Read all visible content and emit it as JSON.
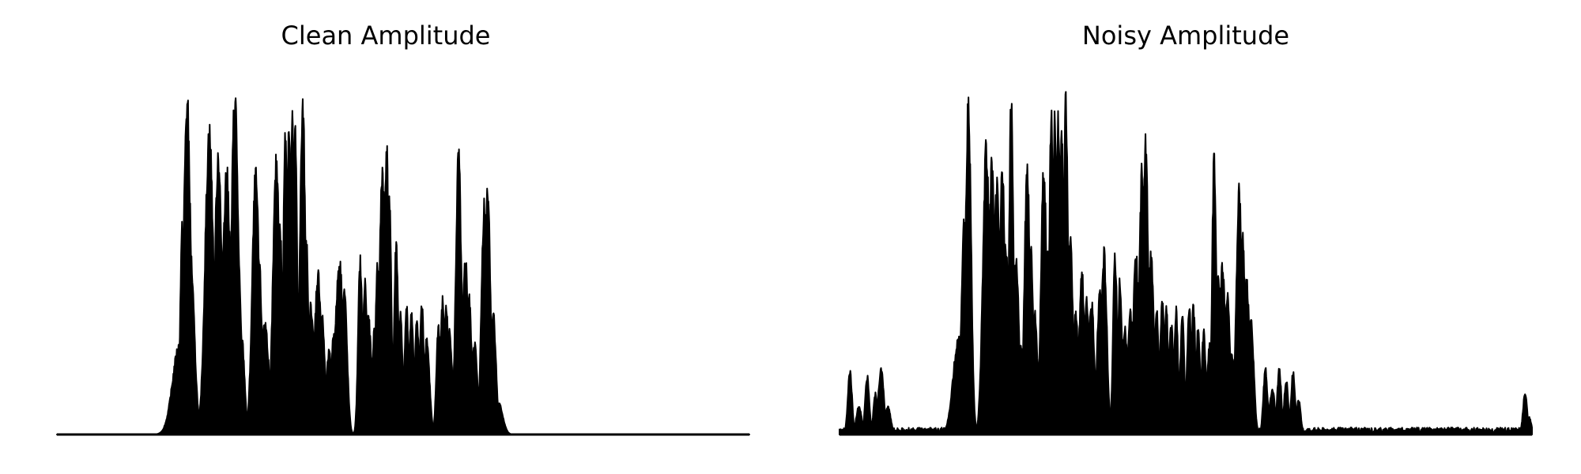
{
  "chart_data": [
    {
      "type": "area",
      "title": "Clean Amplitude",
      "xlabel": "",
      "ylabel": "",
      "axes": "off",
      "grid": false,
      "ylim": [
        0,
        1.0
      ],
      "color": "#000000",
      "peaks": [
        [
          0.177,
          0.01,
          0.26
        ],
        [
          0.181,
          0.003,
          0.6
        ],
        [
          0.188,
          0.005,
          0.97
        ],
        [
          0.192,
          0.006,
          0.55
        ],
        [
          0.22,
          0.006,
          0.88
        ],
        [
          0.226,
          0.004,
          0.45
        ],
        [
          0.233,
          0.005,
          0.82
        ],
        [
          0.245,
          0.006,
          0.76
        ],
        [
          0.249,
          0.003,
          0.4
        ],
        [
          0.257,
          0.005,
          0.99
        ],
        [
          0.262,
          0.004,
          0.5
        ],
        [
          0.267,
          0.004,
          0.28
        ],
        [
          0.287,
          0.005,
          0.75
        ],
        [
          0.292,
          0.004,
          0.5
        ],
        [
          0.3,
          0.006,
          0.33
        ],
        [
          0.317,
          0.005,
          0.79
        ],
        [
          0.322,
          0.004,
          0.6
        ],
        [
          0.33,
          0.003,
          0.91
        ],
        [
          0.335,
          0.003,
          0.91
        ],
        [
          0.34,
          0.003,
          0.91
        ],
        [
          0.344,
          0.003,
          0.88
        ],
        [
          0.355,
          0.004,
          0.95
        ],
        [
          0.36,
          0.003,
          0.58
        ],
        [
          0.367,
          0.004,
          0.38
        ],
        [
          0.377,
          0.005,
          0.47
        ],
        [
          0.383,
          0.004,
          0.34
        ],
        [
          0.393,
          0.004,
          0.24
        ],
        [
          0.4,
          0.004,
          0.3
        ],
        [
          0.408,
          0.006,
          0.5
        ],
        [
          0.415,
          0.004,
          0.42
        ],
        [
          0.438,
          0.003,
          0.51
        ],
        [
          0.445,
          0.003,
          0.45
        ],
        [
          0.45,
          0.004,
          0.34
        ],
        [
          0.459,
          0.004,
          0.31
        ],
        [
          0.463,
          0.003,
          0.5
        ],
        [
          0.47,
          0.004,
          0.78
        ],
        [
          0.476,
          0.003,
          0.85
        ],
        [
          0.48,
          0.003,
          0.68
        ],
        [
          0.49,
          0.003,
          0.56
        ],
        [
          0.496,
          0.003,
          0.35
        ],
        [
          0.505,
          0.003,
          0.37
        ],
        [
          0.512,
          0.003,
          0.36
        ],
        [
          0.52,
          0.003,
          0.34
        ],
        [
          0.527,
          0.003,
          0.38
        ],
        [
          0.534,
          0.004,
          0.28
        ],
        [
          0.551,
          0.003,
          0.32
        ],
        [
          0.557,
          0.003,
          0.39
        ],
        [
          0.562,
          0.004,
          0.37
        ],
        [
          0.567,
          0.004,
          0.3
        ],
        [
          0.58,
          0.004,
          0.81
        ],
        [
          0.59,
          0.004,
          0.51
        ],
        [
          0.595,
          0.004,
          0.4
        ],
        [
          0.603,
          0.004,
          0.27
        ],
        [
          0.617,
          0.004,
          0.67
        ],
        [
          0.622,
          0.004,
          0.73
        ],
        [
          0.63,
          0.004,
          0.36
        ],
        [
          0.638,
          0.006,
          0.09
        ]
      ],
      "x_range": [
        0.0,
        1.0
      ]
    },
    {
      "type": "area",
      "title": "Noisy Amplitude",
      "xlabel": "",
      "ylabel": "",
      "axes": "off",
      "grid": false,
      "ylim": [
        0,
        1.0
      ],
      "color": "#000000",
      "peaks": [
        [
          0.015,
          0.003,
          0.19
        ],
        [
          0.028,
          0.004,
          0.08
        ],
        [
          0.04,
          0.003,
          0.17
        ],
        [
          0.052,
          0.003,
          0.12
        ],
        [
          0.06,
          0.004,
          0.19
        ],
        [
          0.07,
          0.004,
          0.08
        ],
        [
          0.172,
          0.008,
          0.28
        ],
        [
          0.18,
          0.004,
          0.63
        ],
        [
          0.186,
          0.004,
          0.97
        ],
        [
          0.212,
          0.005,
          0.83
        ],
        [
          0.22,
          0.004,
          0.79
        ],
        [
          0.227,
          0.004,
          0.75
        ],
        [
          0.235,
          0.004,
          0.77
        ],
        [
          0.24,
          0.004,
          0.55
        ],
        [
          0.248,
          0.003,
          1.0
        ],
        [
          0.255,
          0.004,
          0.52
        ],
        [
          0.262,
          0.004,
          0.25
        ],
        [
          0.271,
          0.004,
          0.77
        ],
        [
          0.276,
          0.004,
          0.54
        ],
        [
          0.282,
          0.004,
          0.35
        ],
        [
          0.295,
          0.004,
          0.79
        ],
        [
          0.3,
          0.004,
          0.52
        ],
        [
          0.306,
          0.003,
          0.95
        ],
        [
          0.311,
          0.003,
          0.93
        ],
        [
          0.316,
          0.003,
          0.91
        ],
        [
          0.321,
          0.003,
          0.87
        ],
        [
          0.327,
          0.003,
          0.98
        ],
        [
          0.333,
          0.004,
          0.58
        ],
        [
          0.341,
          0.004,
          0.35
        ],
        [
          0.35,
          0.004,
          0.47
        ],
        [
          0.357,
          0.004,
          0.39
        ],
        [
          0.364,
          0.004,
          0.38
        ],
        [
          0.376,
          0.004,
          0.42
        ],
        [
          0.382,
          0.004,
          0.53
        ],
        [
          0.398,
          0.003,
          0.52
        ],
        [
          0.405,
          0.003,
          0.45
        ],
        [
          0.412,
          0.004,
          0.31
        ],
        [
          0.42,
          0.004,
          0.36
        ],
        [
          0.428,
          0.004,
          0.53
        ],
        [
          0.437,
          0.004,
          0.77
        ],
        [
          0.442,
          0.004,
          0.84
        ],
        [
          0.45,
          0.004,
          0.52
        ],
        [
          0.458,
          0.003,
          0.38
        ],
        [
          0.466,
          0.003,
          0.4
        ],
        [
          0.472,
          0.003,
          0.36
        ],
        [
          0.479,
          0.003,
          0.33
        ],
        [
          0.486,
          0.003,
          0.36
        ],
        [
          0.495,
          0.003,
          0.34
        ],
        [
          0.505,
          0.003,
          0.38
        ],
        [
          0.511,
          0.003,
          0.37
        ],
        [
          0.518,
          0.003,
          0.31
        ],
        [
          0.526,
          0.003,
          0.3
        ],
        [
          0.534,
          0.003,
          0.26
        ],
        [
          0.541,
          0.003,
          0.81
        ],
        [
          0.547,
          0.004,
          0.45
        ],
        [
          0.553,
          0.004,
          0.49
        ],
        [
          0.56,
          0.004,
          0.4
        ],
        [
          0.567,
          0.004,
          0.23
        ],
        [
          0.577,
          0.004,
          0.72
        ],
        [
          0.582,
          0.004,
          0.59
        ],
        [
          0.588,
          0.004,
          0.45
        ],
        [
          0.594,
          0.004,
          0.35
        ],
        [
          0.615,
          0.003,
          0.19
        ],
        [
          0.625,
          0.004,
          0.13
        ],
        [
          0.635,
          0.003,
          0.19
        ],
        [
          0.645,
          0.003,
          0.16
        ],
        [
          0.655,
          0.003,
          0.18
        ],
        [
          0.663,
          0.003,
          0.1
        ],
        [
          0.99,
          0.003,
          0.12
        ],
        [
          0.996,
          0.003,
          0.05
        ]
      ],
      "noise_floor": 0.015,
      "x_range": [
        0.0,
        1.0
      ]
    }
  ]
}
